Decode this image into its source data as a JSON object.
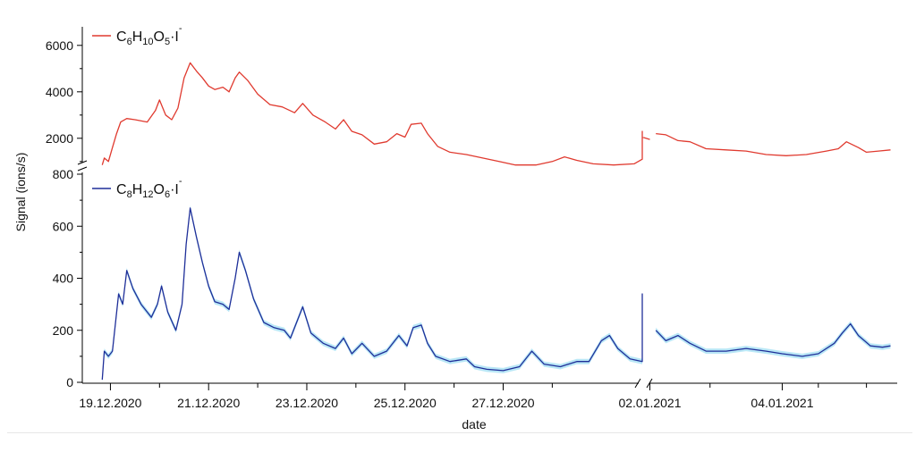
{
  "chart_data": {
    "type": "line",
    "xlabel": "date",
    "ylabel": "Signal (ions/s)",
    "x_tick_labels": [
      "19.12.2020",
      "21.12.2020",
      "23.12.2020",
      "25.12.2020",
      "27.12.2020",
      "02.01.2021",
      "04.01.2021"
    ],
    "x_axis_break": [
      "2020-12-29",
      "2021-01-01"
    ],
    "panels": [
      {
        "series": {
          "name": "C6H10O5·I−",
          "label": {
            "parts": [
              {
                "t": "C",
                "s": "n"
              },
              {
                "t": "6",
                "s": "sub"
              },
              {
                "t": "H",
                "s": "n"
              },
              {
                "t": "10",
                "s": "sub"
              },
              {
                "t": "O",
                "s": "n"
              },
              {
                "t": "5",
                "s": "sub"
              },
              {
                "t": "·I",
                "s": "n"
              },
              {
                "t": "-",
                "s": "sup"
              }
            ]
          },
          "color": "#e03a2f",
          "points": [
            [
              "2020-12-18T20:00",
              850
            ],
            [
              "2020-12-18T21:00",
              1150
            ],
            [
              "2020-12-18T23:00",
              1000
            ],
            [
              "2020-12-19T01:00",
              1600
            ],
            [
              "2020-12-19T03:00",
              2200
            ],
            [
              "2020-12-19T05:00",
              2700
            ],
            [
              "2020-12-19T08:00",
              2850
            ],
            [
              "2020-12-19T12:00",
              2800
            ],
            [
              "2020-12-19T18:00",
              2700
            ],
            [
              "2020-12-19T22:00",
              3200
            ],
            [
              "2020-12-20T00:00",
              3650
            ],
            [
              "2020-12-20T03:00",
              3000
            ],
            [
              "2020-12-20T06:00",
              2800
            ],
            [
              "2020-12-20T09:00",
              3300
            ],
            [
              "2020-12-20T12:00",
              4600
            ],
            [
              "2020-12-20T15:00",
              5250
            ],
            [
              "2020-12-20T18:00",
              4900
            ],
            [
              "2020-12-20T21:00",
              4600
            ],
            [
              "2020-12-21T00:00",
              4250
            ],
            [
              "2020-12-21T03:00",
              4100
            ],
            [
              "2020-12-21T07:00",
              4200
            ],
            [
              "2020-12-21T10:00",
              4000
            ],
            [
              "2020-12-21T13:00",
              4600
            ],
            [
              "2020-12-21T15:00",
              4850
            ],
            [
              "2020-12-21T19:00",
              4500
            ],
            [
              "2020-12-22T00:00",
              3900
            ],
            [
              "2020-12-22T06:00",
              3450
            ],
            [
              "2020-12-22T12:00",
              3350
            ],
            [
              "2020-12-22T18:00",
              3100
            ],
            [
              "2020-12-22T22:00",
              3500
            ],
            [
              "2020-12-23T03:00",
              3000
            ],
            [
              "2020-12-23T09:00",
              2700
            ],
            [
              "2020-12-23T14:00",
              2400
            ],
            [
              "2020-12-23T18:00",
              2800
            ],
            [
              "2020-12-23T22:00",
              2300
            ],
            [
              "2020-12-24T03:00",
              2150
            ],
            [
              "2020-12-24T09:00",
              1750
            ],
            [
              "2020-12-24T15:00",
              1850
            ],
            [
              "2020-12-24T20:00",
              2200
            ],
            [
              "2020-12-25T00:00",
              2050
            ],
            [
              "2020-12-25T03:00",
              2600
            ],
            [
              "2020-12-25T08:00",
              2650
            ],
            [
              "2020-12-25T11:00",
              2200
            ],
            [
              "2020-12-25T16:00",
              1650
            ],
            [
              "2020-12-25T22:00",
              1400
            ],
            [
              "2020-12-26T06:00",
              1300
            ],
            [
              "2020-12-26T14:00",
              1150
            ],
            [
              "2020-12-26T22:00",
              1000
            ],
            [
              "2020-12-27T06:00",
              850
            ],
            [
              "2020-12-27T16:00",
              850
            ],
            [
              "2020-12-28T00:00",
              1000
            ],
            [
              "2020-12-28T06:00",
              1200
            ],
            [
              "2020-12-28T12:00",
              1050
            ],
            [
              "2020-12-28T20:00",
              900
            ],
            [
              "2020-12-29T06:00",
              850
            ],
            [
              "2020-12-29T16:00",
              900
            ],
            [
              "2020-12-29T20:00",
              1100
            ],
            [
              "2020-12-30T01:00",
              1450
            ],
            [
              "2020-12-30T06:00",
              1500
            ],
            [
              "2020-12-30T10:00",
              1300
            ],
            [
              "2020-12-30T16:00",
              1200
            ],
            [
              "2020-12-30T22:00",
              1100
            ],
            [
              "2020-12-31T06:00",
              1200
            ],
            [
              "2020-12-31T12:00",
              1300
            ],
            [
              "2020-12-31T16:00",
              2100
            ],
            [
              "2020-12-31T22:00",
              2150
            ],
            [
              "2021-01-01T03:00",
              2200
            ],
            [
              "2021-01-01T08:00",
              2100
            ],
            [
              "2021-01-01T13:00",
              2300
            ],
            [
              "2021-01-01T18:00",
              2050
            ],
            [
              "2021-01-02T00:00",
              1950
            ],
            null,
            [
              "2021-01-02T03:00",
              2200
            ],
            [
              "2021-01-02T08:00",
              2150
            ],
            [
              "2021-01-02T14:00",
              1900
            ],
            [
              "2021-01-02T20:00",
              1850
            ],
            [
              "2021-01-03T04:00",
              1550
            ],
            [
              "2021-01-03T14:00",
              1500
            ],
            [
              "2021-01-04T00:00",
              1450
            ],
            [
              "2021-01-04T10:00",
              1300
            ],
            [
              "2021-01-04T20:00",
              1250
            ],
            [
              "2021-01-05T06:00",
              1300
            ],
            [
              "2021-01-05T16:00",
              1450
            ],
            [
              "2021-01-05T22:00",
              1550
            ],
            [
              "2021-01-06T02:00",
              1850
            ],
            [
              "2021-01-06T08:00",
              1600
            ],
            [
              "2021-01-06T12:00",
              1400
            ],
            [
              "2021-01-06T18:00",
              1450
            ],
            [
              "2021-01-07T00:00",
              1500
            ]
          ]
        }
      },
      {
        "series": {
          "name": "C8H12O6·I−",
          "label": {
            "parts": [
              {
                "t": "C",
                "s": "n"
              },
              {
                "t": "8",
                "s": "sub"
              },
              {
                "t": "H",
                "s": "n"
              },
              {
                "t": "12",
                "s": "sub"
              },
              {
                "t": "O",
                "s": "n"
              },
              {
                "t": "6",
                "s": "sub"
              },
              {
                "t": "·I",
                "s": "n"
              },
              {
                "t": "-",
                "s": "sup"
              }
            ]
          },
          "color": "#1f2f99",
          "band_color": "#7fd3ef",
          "points": [
            [
              "2020-12-18T20:00",
              10
            ],
            [
              "2020-12-18T21:00",
              120
            ],
            [
              "2020-12-18T23:00",
              100
            ],
            [
              "2020-12-19T01:00",
              120
            ],
            [
              "2020-12-19T04:00",
              340
            ],
            [
              "2020-12-19T06:00",
              300
            ],
            [
              "2020-12-19T08:00",
              430
            ],
            [
              "2020-12-19T11:00",
              360
            ],
            [
              "2020-12-19T15:00",
              300
            ],
            [
              "2020-12-19T20:00",
              250
            ],
            [
              "2020-12-19T23:00",
              300
            ],
            [
              "2020-12-20T01:00",
              370
            ],
            [
              "2020-12-20T04:00",
              270
            ],
            [
              "2020-12-20T08:00",
              200
            ],
            [
              "2020-12-20T11:00",
              300
            ],
            [
              "2020-12-20T13:00",
              530
            ],
            [
              "2020-12-20T15:00",
              670
            ],
            [
              "2020-12-20T18:00",
              560
            ],
            [
              "2020-12-20T21:00",
              460
            ],
            [
              "2020-12-21T00:00",
              370
            ],
            [
              "2020-12-21T03:00",
              310
            ],
            [
              "2020-12-21T07:00",
              300
            ],
            [
              "2020-12-21T10:00",
              280
            ],
            [
              "2020-12-21T13:00",
              400
            ],
            [
              "2020-12-21T15:00",
              500
            ],
            [
              "2020-12-21T18:00",
              430
            ],
            [
              "2020-12-21T22:00",
              320
            ],
            [
              "2020-12-22T03:00",
              230
            ],
            [
              "2020-12-22T08:00",
              210
            ],
            [
              "2020-12-22T13:00",
              200
            ],
            [
              "2020-12-22T16:00",
              170
            ],
            [
              "2020-12-22T22:00",
              290
            ],
            [
              "2020-12-23T02:00",
              190
            ],
            [
              "2020-12-23T08:00",
              150
            ],
            [
              "2020-12-23T14:00",
              130
            ],
            [
              "2020-12-23T18:00",
              170
            ],
            [
              "2020-12-23T22:00",
              110
            ],
            [
              "2020-12-24T03:00",
              150
            ],
            [
              "2020-12-24T09:00",
              100
            ],
            [
              "2020-12-24T15:00",
              120
            ],
            [
              "2020-12-24T21:00",
              180
            ],
            [
              "2020-12-25T01:00",
              140
            ],
            [
              "2020-12-25T04:00",
              210
            ],
            [
              "2020-12-25T08:00",
              220
            ],
            [
              "2020-12-25T11:00",
              150
            ],
            [
              "2020-12-25T15:00",
              100
            ],
            [
              "2020-12-25T22:00",
              80
            ],
            [
              "2020-12-26T06:00",
              90
            ],
            [
              "2020-12-26T10:00",
              60
            ],
            [
              "2020-12-26T16:00",
              50
            ],
            [
              "2020-12-27T00:00",
              45
            ],
            [
              "2020-12-27T08:00",
              60
            ],
            [
              "2020-12-27T14:00",
              120
            ],
            [
              "2020-12-27T20:00",
              70
            ],
            [
              "2020-12-28T04:00",
              60
            ],
            [
              "2020-12-28T12:00",
              80
            ],
            [
              "2020-12-28T18:00",
              80
            ],
            [
              "2020-12-29T00:00",
              160
            ],
            [
              "2020-12-29T04:00",
              180
            ],
            [
              "2020-12-29T08:00",
              130
            ],
            [
              "2020-12-29T14:00",
              90
            ],
            [
              "2020-12-30T00:00",
              80
            ],
            [
              "2020-12-30T08:00",
              100
            ],
            [
              "2020-12-30T12:00",
              150
            ],
            [
              "2020-12-30T16:00",
              340
            ],
            [
              "2020-12-30T20:00",
              300
            ],
            [
              "2020-12-31T02:00",
              270
            ],
            [
              "2020-12-31T08:00",
              240
            ],
            [
              "2020-12-31T14:00",
              220
            ],
            [
              "2020-12-31T20:00",
              160
            ],
            [
              "2021-01-01T00:00",
              170
            ],
            [
              "2021-01-01T02:00",
              150
            ],
            null,
            [
              "2021-01-02T03:00",
              200
            ],
            [
              "2021-01-02T08:00",
              160
            ],
            [
              "2021-01-02T14:00",
              180
            ],
            [
              "2021-01-02T20:00",
              150
            ],
            [
              "2021-01-03T04:00",
              120
            ],
            [
              "2021-01-03T14:00",
              120
            ],
            [
              "2021-01-04T00:00",
              130
            ],
            [
              "2021-01-04T10:00",
              120
            ],
            [
              "2021-01-04T18:00",
              110
            ],
            [
              "2021-01-05T04:00",
              100
            ],
            [
              "2021-01-05T12:00",
              110
            ],
            [
              "2021-01-05T20:00",
              150
            ],
            [
              "2021-01-06T00:00",
              190
            ],
            [
              "2021-01-06T04:00",
              225
            ],
            [
              "2021-01-06T08:00",
              180
            ],
            [
              "2021-01-06T14:00",
              140
            ],
            [
              "2021-01-06T20:00",
              135
            ],
            [
              "2021-01-07T00:00",
              140
            ]
          ]
        }
      }
    ],
    "top_panel_y_ticks": [
      2000,
      4000,
      6000
    ],
    "bottom_panel_y_ticks": [
      0,
      200,
      400,
      600,
      800
    ],
    "top_panel_y_range": [
      800,
      6800
    ],
    "bottom_panel_y_range": [
      0,
      800
    ],
    "x_range": [
      "2020-12-18T12:00",
      "2021-01-07T02:00"
    ],
    "grid": false,
    "legend_placement": "top-left of each panel"
  }
}
